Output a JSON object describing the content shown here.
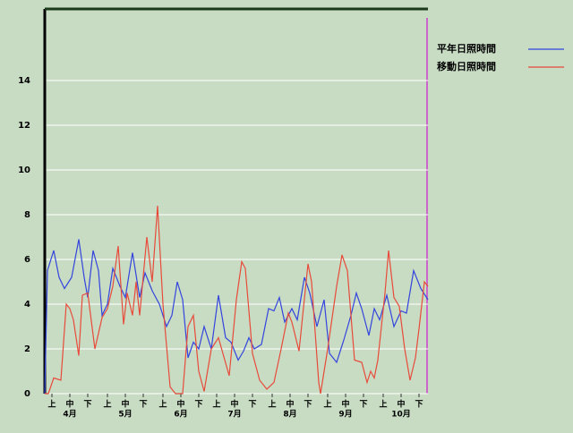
{
  "chart_data": {
    "type": "line",
    "xlim": [
      0,
      214
    ],
    "ylim": [
      0,
      17.2
    ],
    "yticks": [
      0,
      2,
      4,
      6,
      8,
      10,
      12,
      14
    ],
    "grid": true,
    "legend": "top-right",
    "xticks": [
      {
        "value": 4,
        "label": "上"
      },
      {
        "value": 14,
        "label": "中"
      },
      {
        "value": 24,
        "label": "下"
      },
      {
        "value": 35,
        "label": "上"
      },
      {
        "value": 45,
        "label": "中"
      },
      {
        "value": 55,
        "label": "下"
      },
      {
        "value": 66,
        "label": "上"
      },
      {
        "value": 76,
        "label": "中"
      },
      {
        "value": 86,
        "label": "下"
      },
      {
        "value": 96,
        "label": "上"
      },
      {
        "value": 106,
        "label": "中"
      },
      {
        "value": 116,
        "label": "下"
      },
      {
        "value": 127,
        "label": "上"
      },
      {
        "value": 137,
        "label": "中"
      },
      {
        "value": 147,
        "label": "下"
      },
      {
        "value": 158,
        "label": "上"
      },
      {
        "value": 168,
        "label": "中"
      },
      {
        "value": 178,
        "label": "下"
      },
      {
        "value": 189,
        "label": "上"
      },
      {
        "value": 199,
        "label": "中"
      },
      {
        "value": 209,
        "label": "下"
      }
    ],
    "month_ticks": [
      {
        "value": 14,
        "label": "4月"
      },
      {
        "value": 45,
        "label": "5月"
      },
      {
        "value": 76,
        "label": "6月"
      },
      {
        "value": 106,
        "label": "7月"
      },
      {
        "value": 137,
        "label": "8月"
      },
      {
        "value": 168,
        "label": "9月"
      },
      {
        "value": 199,
        "label": "10月"
      }
    ],
    "series": [
      {
        "name": "平年日照時間",
        "color": "#3344dd",
        "x": [
          0,
          1.5,
          5,
          8,
          11,
          15,
          19,
          22,
          24,
          27,
          30,
          32,
          35,
          38,
          42,
          45,
          49,
          53,
          56,
          60,
          64,
          68,
          71,
          74,
          77,
          80,
          83,
          86,
          89,
          93,
          97,
          101,
          104,
          108,
          111,
          114,
          117,
          121,
          125,
          128,
          131,
          134,
          138,
          141,
          145,
          148,
          152,
          156,
          159,
          163,
          167,
          171,
          174,
          177,
          181,
          184,
          187,
          191,
          195,
          199,
          202,
          206,
          210,
          214
        ],
        "values": [
          0,
          5.5,
          6.4,
          5.2,
          4.7,
          5.2,
          6.9,
          5.2,
          4.3,
          6.4,
          5.5,
          3.5,
          4.0,
          5.6,
          4.8,
          4.3,
          6.3,
          4.3,
          5.4,
          4.6,
          4.0,
          3.0,
          3.5,
          5.0,
          4.2,
          1.6,
          2.3,
          2.0,
          3.0,
          2.0,
          4.4,
          2.5,
          2.3,
          1.5,
          1.9,
          2.5,
          2.0,
          2.2,
          3.8,
          3.7,
          4.3,
          3.2,
          3.8,
          3.3,
          5.2,
          4.5,
          3.0,
          4.2,
          1.8,
          1.4,
          2.4,
          3.5,
          4.5,
          3.8,
          2.6,
          3.8,
          3.3,
          4.4,
          3.0,
          3.7,
          3.6,
          5.5,
          4.7,
          4.2
        ]
      },
      {
        "name": "移動日照時間",
        "color": "#e84a3a",
        "x": [
          0,
          2,
          5,
          9,
          12,
          14,
          16,
          19,
          21,
          24,
          28,
          32,
          35,
          38,
          41,
          44,
          46,
          49,
          51,
          53,
          57,
          60,
          63,
          66,
          70,
          73,
          77,
          80,
          83,
          86,
          89,
          93,
          97,
          103,
          107,
          110,
          112,
          116,
          120,
          124,
          128,
          132,
          136,
          138,
          142,
          147,
          149,
          153,
          154,
          158,
          163,
          166,
          169,
          173,
          177,
          180,
          182,
          184,
          186,
          190,
          192,
          195,
          198,
          201,
          204,
          207,
          209,
          212,
          214
        ],
        "values": [
          0,
          0,
          0.7,
          0.6,
          4.0,
          3.8,
          3.3,
          1.7,
          4.4,
          4.5,
          2.0,
          3.4,
          3.8,
          4.8,
          6.6,
          3.1,
          4.5,
          3.5,
          5.0,
          3.5,
          7.0,
          5.0,
          8.4,
          4.0,
          0.3,
          0,
          0,
          3.0,
          3.5,
          1.0,
          0.1,
          2.0,
          2.5,
          0.8,
          4.2,
          5.9,
          5.6,
          1.8,
          0.6,
          0.2,
          0.5,
          2.0,
          3.6,
          3.2,
          1.9,
          5.8,
          5.0,
          0.5,
          0,
          2.0,
          4.8,
          6.2,
          5.5,
          1.5,
          1.4,
          0.5,
          1.0,
          0.7,
          1.5,
          4.5,
          6.4,
          4.3,
          3.9,
          2.0,
          0.6,
          1.6,
          2.9,
          5.0,
          4.8
        ]
      }
    ]
  }
}
